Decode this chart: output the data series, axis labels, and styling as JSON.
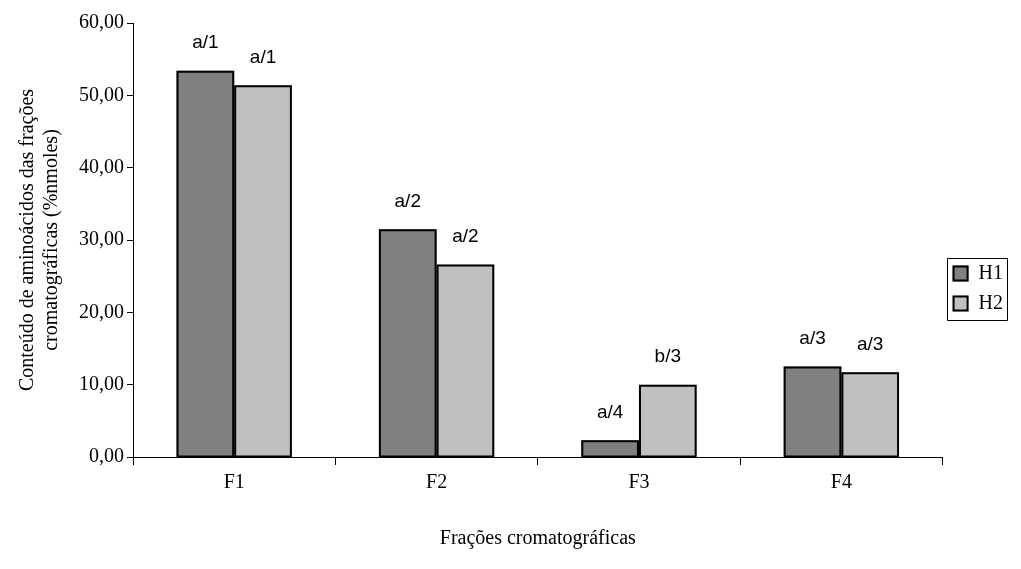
{
  "chart_data": {
    "type": "bar",
    "xlabel": "Frações cromatográficas",
    "ylabel": "Conteúdo de aminoácidos das frações\ncromatográficas (%nmoles)",
    "categories": [
      "F1",
      "F2",
      "F3",
      "F4"
    ],
    "series": [
      {
        "name": "H1",
        "color": "#808080",
        "values": [
          53.4,
          31.5,
          2.3,
          12.5
        ]
      },
      {
        "name": "H2",
        "color": "#c0c0c0",
        "values": [
          51.4,
          26.6,
          10.0,
          11.7
        ]
      }
    ],
    "annotations": [
      {
        "text": "a/1",
        "x": "F1",
        "y": 53.4
      },
      {
        "text": "a/1",
        "x": "F1",
        "y": 51.4
      },
      {
        "text": "a/2",
        "x": "F2",
        "y": 31.5
      },
      {
        "text": "a/2",
        "x": "F2",
        "y": 26.6
      },
      {
        "text": "a/4",
        "x": "F3",
        "y": 2.3
      },
      {
        "text": "b/3",
        "x": "F3",
        "y": 10.0
      },
      {
        "text": "a/3",
        "x": "F4",
        "y": 12.5
      },
      {
        "text": "a/3",
        "x": "F4",
        "y": 11.7
      }
    ],
    "ylim": [
      0,
      60
    ],
    "yticks": [
      {
        "value": 0,
        "label": "0,00"
      },
      {
        "value": 10,
        "label": "10,00"
      },
      {
        "value": 20,
        "label": "20,00"
      },
      {
        "value": 30,
        "label": "30,00"
      },
      {
        "value": 40,
        "label": "40,00"
      },
      {
        "value": 50,
        "label": "50,00"
      },
      {
        "value": 60,
        "label": "60,00"
      }
    ],
    "grid": false,
    "legend": "right"
  }
}
